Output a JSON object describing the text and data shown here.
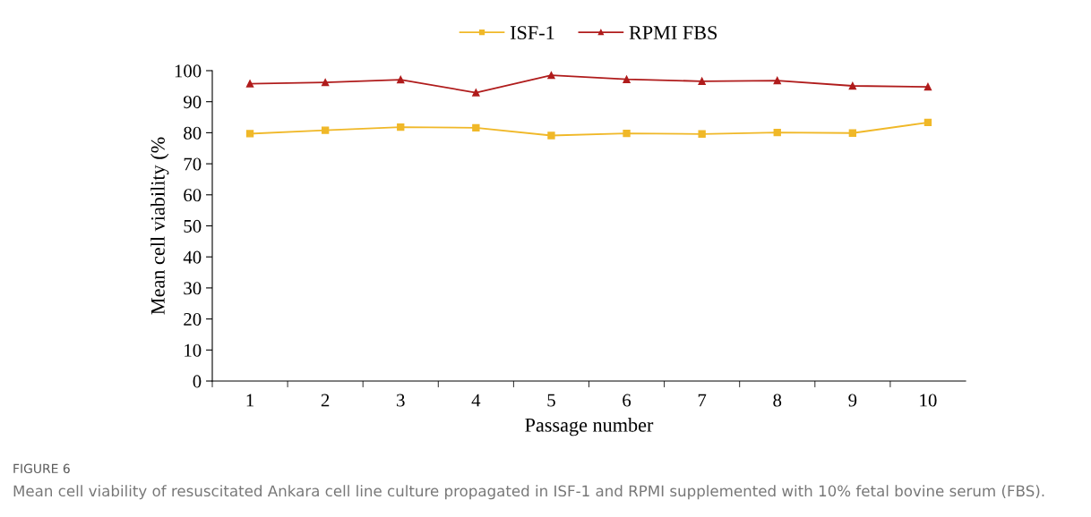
{
  "chart_data": {
    "type": "line",
    "xlabel": "Passage number",
    "ylabel": "Mean cell viability (%",
    "categories": [
      "1",
      "2",
      "3",
      "4",
      "5",
      "6",
      "7",
      "8",
      "9",
      "10"
    ],
    "series": [
      {
        "name": "ISF-1",
        "color": "#f0b828",
        "marker": "square",
        "values": [
          79.7,
          80.8,
          81.8,
          81.6,
          79.1,
          79.8,
          79.6,
          80.1,
          79.9,
          83.3
        ]
      },
      {
        "name": "RPMI FBS",
        "color": "#b01c1c",
        "marker": "triangle",
        "values": [
          95.8,
          96.2,
          97.1,
          92.9,
          98.5,
          97.2,
          96.6,
          96.8,
          95.1,
          94.8
        ]
      }
    ],
    "ylim": [
      0,
      100
    ],
    "yticks": [
      0,
      10,
      20,
      30,
      40,
      50,
      60,
      70,
      80,
      90,
      100
    ],
    "grid": false,
    "legend": "top",
    "line_style": "solid",
    "annotations": [
      "FIGURE 6",
      "Mean cell viability of resuscitated Ankara cell line culture propagated in ISF-1 and RPMI supplemented with 10% fetal bovine serum (FBS)."
    ]
  }
}
